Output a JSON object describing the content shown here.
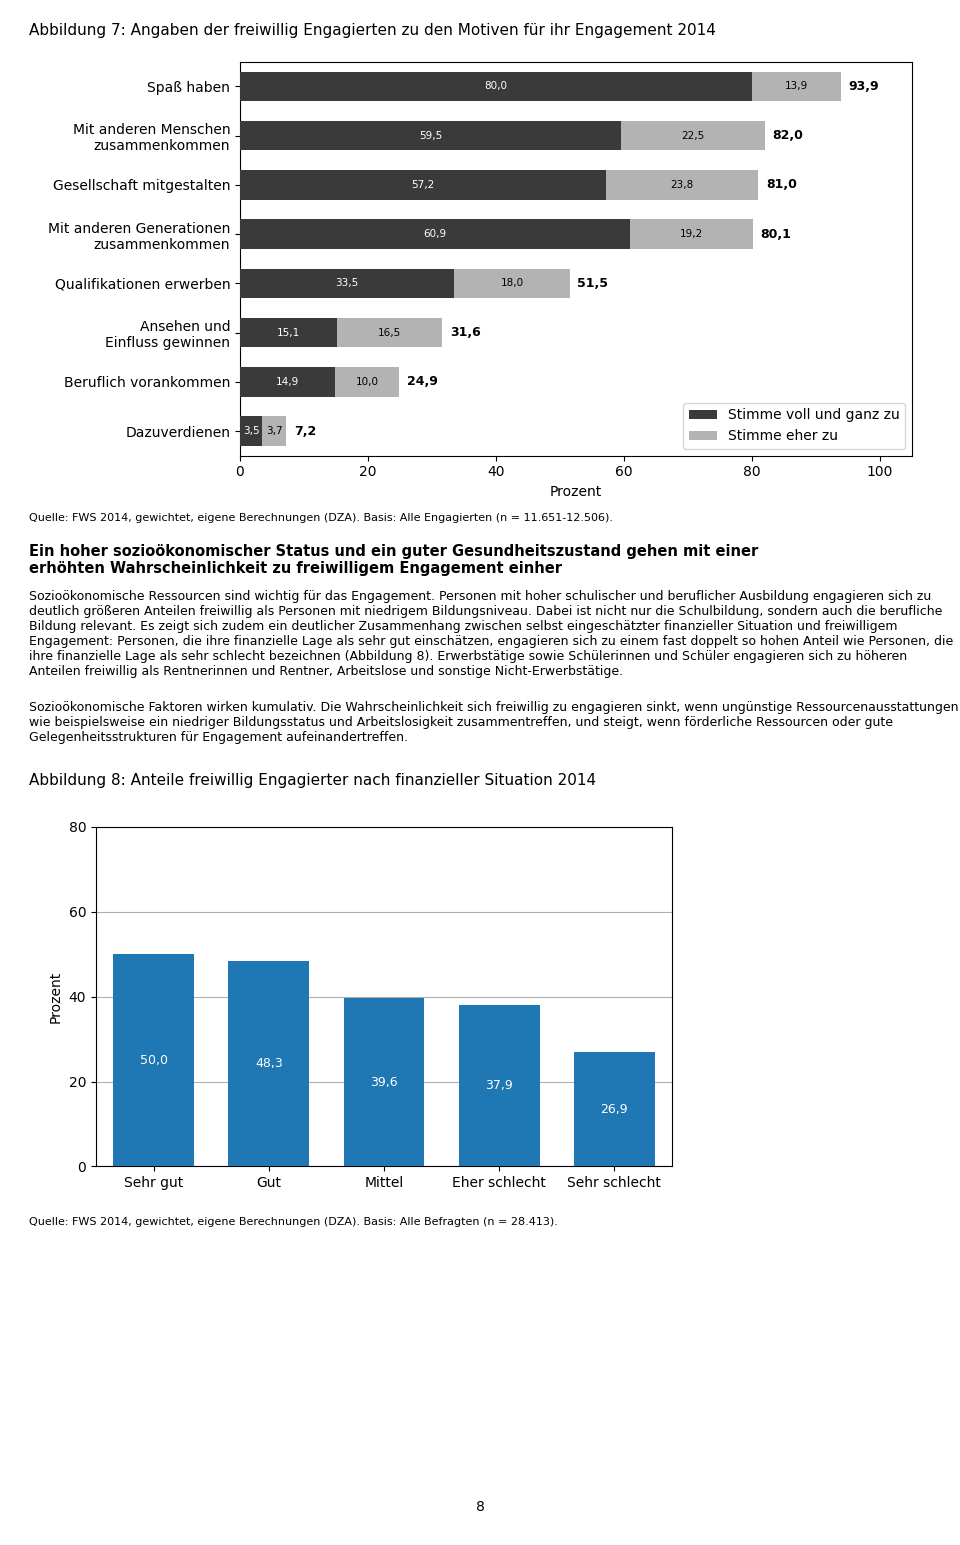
{
  "chart_data": [
    {
      "type": "bar",
      "orientation": "horizontal",
      "stacked": true,
      "title": "Abbildung 7: Angaben der freiwillig Engagierten zu den Motiven für ihr Engagement 2014",
      "categories": [
        "Spaß haben",
        "Mit anderen Menschen\nzusammenkommen",
        "Gesellschaft mitgestalten",
        "Mit anderen Generationen\nzusammenkommen",
        "Qualifikationen erwerben",
        "Ansehen und\nEinfluss gewinnen",
        "Beruflich vorankommen",
        "Dazuverdienen"
      ],
      "series": [
        {
          "name": "Stimme voll und ganz zu",
          "color": "#3a3a3a",
          "values": [
            80.0,
            59.5,
            57.2,
            60.9,
            33.5,
            15.1,
            14.9,
            3.5
          ],
          "value_labels": [
            "80,0",
            "59,5",
            "57,2",
            "60,9",
            "33,5",
            "15,1",
            "14,9",
            "3,5"
          ]
        },
        {
          "name": "Stimme eher zu",
          "color": "#b3b3b3",
          "values": [
            13.9,
            22.5,
            23.8,
            19.2,
            18.0,
            16.5,
            10.0,
            3.7
          ],
          "value_labels": [
            "13,9",
            "22,5",
            "23,8",
            "19,2",
            "18,0",
            "16,5",
            "10,0",
            "3,7"
          ]
        }
      ],
      "totals": [
        93.9,
        82.0,
        81.0,
        80.1,
        51.5,
        31.6,
        24.9,
        7.2
      ],
      "total_labels": [
        "93,9",
        "82,0",
        "81,0",
        "80,1",
        "51,5",
        "31,6",
        "24,9",
        "7,2"
      ],
      "data_labels": true,
      "xlabel": "Prozent",
      "xlim": [
        0,
        105
      ],
      "xticks": [
        0,
        20,
        40,
        60,
        80,
        100
      ],
      "grid": false,
      "legend": "lower right",
      "annotations": [
        "Quelle: FWS 2014, gewichtet, eigene Berechnungen (DZA). Basis: Alle Engagierten (n = 11.651-12.506).",
        "Ein hoher sozioökonomischer Status und ein guter Gesundheitszustand gehen mit einer\nerhöhten Wahrscheinlichkeit zu freiwilligem Engagement einher",
        "Sozioökonomische Ressourcen sind wichtig für das Engagement. Personen mit hoher schulischer und beruflicher Ausbildung engagieren sich zu deutlich größeren Anteilen freiwillig als Personen mit niedrigem Bildungsniveau. Dabei ist nicht nur die Schulbildung, sondern auch die berufliche Bildung relevant. Es zeigt sich zudem ein deutlicher Zusammenhang zwischen selbst eingeschätzter finanzieller Situation und freiwilligem Engagement: Personen, die ihre finanzielle Lage als sehr gut einschätzen, engagieren sich zu einem fast doppelt so hohen Anteil wie Personen, die ihre finanzielle Lage als sehr schlecht bezeichnen (Abbildung 8). Erwerbstätige sowie Schülerinnen und Schüler engagieren sich zu höheren Anteilen freiwillig als Rentnerinnen und Rentner, Arbeitslose und sonstige Nicht-Erwerbstätige.",
        "Sozioökonomische Faktoren wirken kumulativ. Die Wahrscheinlichkeit sich freiwillig zu engagieren sinkt, wenn ungünstige Ressourcenausstattungen wie beispielsweise ein niedriger Bildungsstatus und Arbeitslosigkeit zusammentreffen, und steigt, wenn förderliche Ressourcen oder gute Gelegenheitsstrukturen für Engagement aufeinandertreffen."
      ]
    },
    {
      "type": "bar",
      "title": "Abbildung 8: Anteile freiwillig Engagierter nach finanzieller Situation 2014",
      "categories": [
        "Sehr gut",
        "Gut",
        "Mittel",
        "Eher schlecht",
        "Sehr schlecht"
      ],
      "values": [
        50.0,
        48.3,
        39.6,
        37.9,
        26.9
      ],
      "value_labels": [
        "50,0",
        "48,3",
        "39,6",
        "37,9",
        "26,9"
      ],
      "data_labels": true,
      "ylabel": "Prozent",
      "ylim": [
        0,
        80
      ],
      "yticks": [
        0,
        20,
        40,
        60,
        80
      ],
      "grid": true,
      "annotations": [
        "Quelle: FWS 2014, gewichtet, eigene Berechnungen (DZA). Basis: Alle Befragten (n = 28.413).",
        "8"
      ]
    }
  ]
}
